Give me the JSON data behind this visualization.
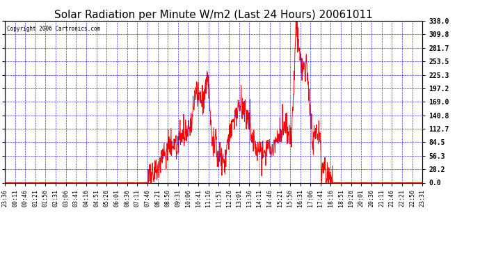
{
  "title": "Solar Radiation per Minute W/m2 (Last 24 Hours) 20061011",
  "copyright": "Copyright 2006 Cartronics.com",
  "ylabel_values": [
    0.0,
    28.2,
    56.3,
    84.5,
    112.7,
    140.8,
    169.0,
    197.2,
    225.3,
    253.5,
    281.7,
    309.8,
    338.0
  ],
  "ymax": 338.0,
  "ymin": 0.0,
  "line_color": "red",
  "grid_color": "blue",
  "bg_color": "white",
  "title_fontsize": 11,
  "x_labels": [
    "23:36",
    "00:11",
    "00:46",
    "01:21",
    "01:56",
    "02:31",
    "03:06",
    "03:41",
    "04:16",
    "04:51",
    "05:26",
    "06:01",
    "06:36",
    "07:11",
    "07:46",
    "08:21",
    "08:56",
    "09:31",
    "10:06",
    "10:41",
    "11:16",
    "11:51",
    "12:26",
    "13:01",
    "13:36",
    "14:11",
    "14:46",
    "15:21",
    "15:56",
    "16:31",
    "17:06",
    "17:41",
    "18:16",
    "18:51",
    "19:26",
    "20:01",
    "20:36",
    "21:11",
    "21:46",
    "22:21",
    "22:56",
    "23:31"
  ],
  "num_points": 1440
}
